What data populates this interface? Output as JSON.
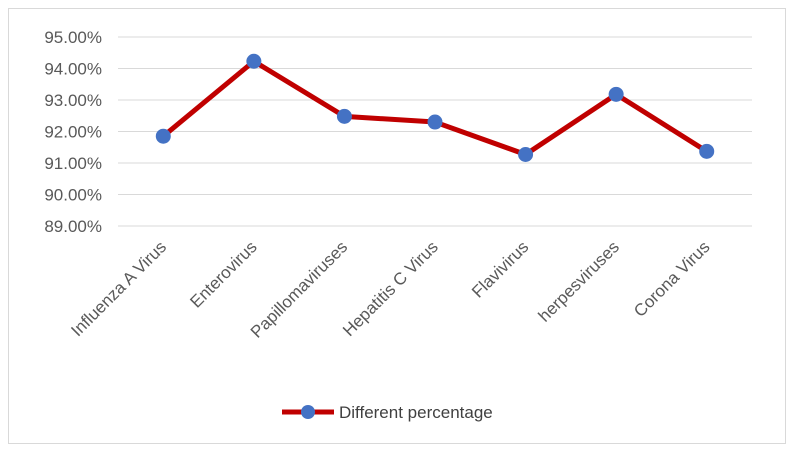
{
  "chart_data": {
    "type": "line",
    "categories": [
      "Influenza A Virus",
      "Enterovirus",
      "Papillomaviruses",
      "Hepatitis C Virus",
      "Flavivirus",
      "herpesviruses",
      "Corona Virus"
    ],
    "series": [
      {
        "name": "Different percentage",
        "values": [
          91.85,
          94.23,
          92.48,
          92.3,
          91.27,
          93.18,
          91.37
        ],
        "line_color": "#c00000",
        "marker_color": "#4472c4"
      }
    ],
    "y_ticks": [
      "89.00%",
      "90.00%",
      "91.00%",
      "92.00%",
      "93.00%",
      "94.00%",
      "95.00%"
    ],
    "ylim": [
      89,
      95
    ],
    "y_unit": "%",
    "grid": true,
    "legend_position": "bottom"
  }
}
